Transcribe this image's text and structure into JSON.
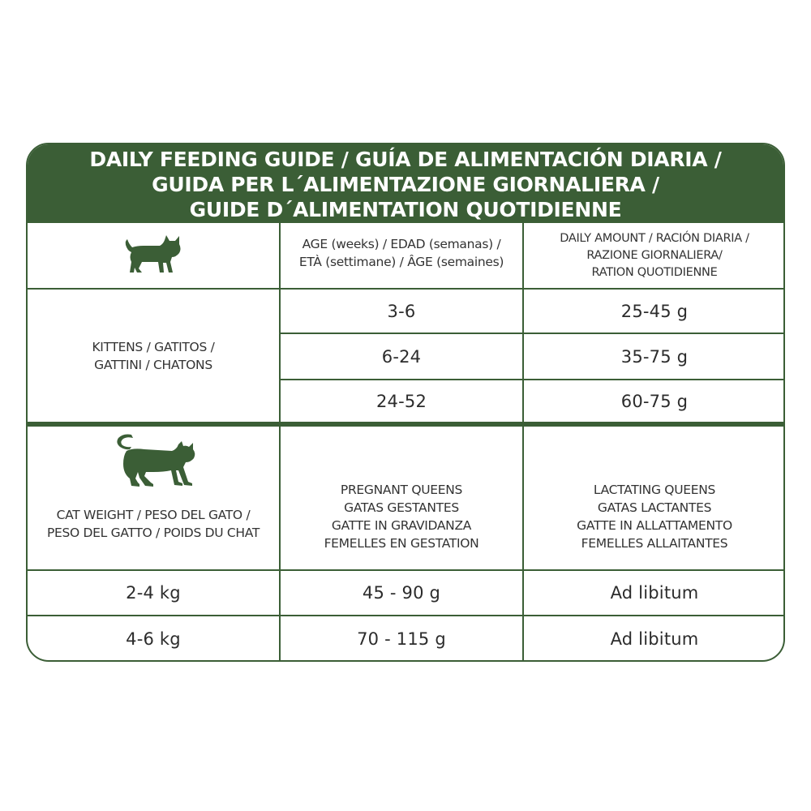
{
  "title_lines": [
    "DAILY FEEDING GUIDE / GUÍA DE ALIMENTACIÓN DIARIA /",
    "GUIDA PER L´ALIMENTAZIONE GIORNALIERA /",
    "GUIDE D´ALIMENTATION QUOTIDIENNE"
  ],
  "header": {
    "icon": "kitten-icon",
    "age_lines": [
      "AGE (weeks) / EDAD (semanas) /",
      "ETÀ (settimane) / ÂGE (semaines)"
    ],
    "amount_lines": [
      "DAILY AMOUNT / RACIÓN DIARIA /",
      "RAZIONE GIORNALIERA/",
      "RATION QUOTIDIENNE"
    ]
  },
  "kittens": {
    "label_lines": [
      "KITTENS / GATITOS /",
      "GATTINI / CHATONS"
    ],
    "rows": [
      {
        "age": "3-6",
        "amount": "25-45 g"
      },
      {
        "age": "6-24",
        "amount": "35-75 g"
      },
      {
        "age": "24-52",
        "amount": "60-75 g"
      }
    ]
  },
  "adults": {
    "icon": "cat-icon",
    "weight_label_lines": [
      "CAT WEIGHT / PESO DEL GATO /",
      "PESO DEL GATTO / POIDS DU CHAT"
    ],
    "pregnant_lines": [
      "PREGNANT QUEENS",
      "GATAS GESTANTES",
      "GATTE IN GRAVIDANZA",
      "FEMELLES EN GESTATION"
    ],
    "lactating_lines": [
      "LACTATING QUEENS",
      "GATAS LACTANTES",
      "GATTE IN ALLATTAMENTO",
      "FEMELLES ALLAITANTES"
    ],
    "rows": [
      {
        "weight": "2-4 kg",
        "pregnant": "45 - 90 g",
        "lactating": "Ad libitum"
      },
      {
        "weight": "4-6 kg",
        "pregnant": "70 - 115 g",
        "lactating": "Ad libitum"
      }
    ]
  },
  "colors": {
    "accent": "#3b5e36",
    "text": "#2c2c2c",
    "background": "#ffffff"
  }
}
